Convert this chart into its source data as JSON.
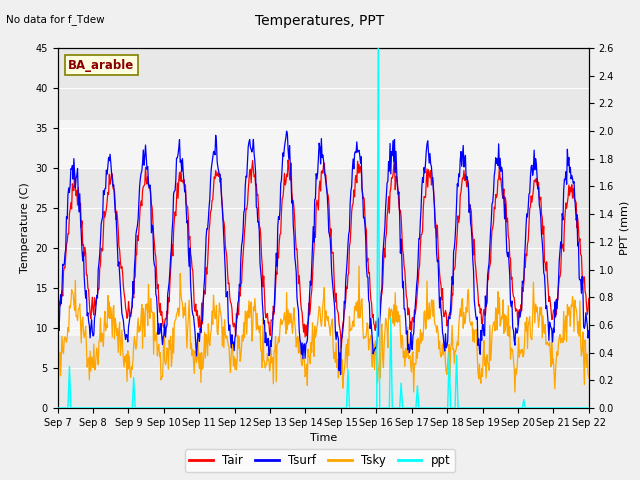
{
  "title": "Temperatures, PPT",
  "subtitle": "No data for f_Tdew",
  "xlabel": "Time",
  "ylabel_left": "Temperature (C)",
  "ylabel_right": "PPT (mm)",
  "legend_label": "BA_arable",
  "series_labels": [
    "Tair",
    "Tsurf",
    "Tsky",
    "ppt"
  ],
  "series_colors": [
    "red",
    "blue",
    "orange",
    "cyan"
  ],
  "ylim_left": [
    0,
    45
  ],
  "ylim_right": [
    0.0,
    2.6
  ],
  "xtick_labels": [
    "Sep 7",
    "Sep 8",
    "Sep 9",
    "Sep 10",
    "Sep 11",
    "Sep 12",
    "Sep 13",
    "Sep 14",
    "Sep 15",
    "Sep 16",
    "Sep 17",
    "Sep 18",
    "Sep 19",
    "Sep 20",
    "Sep 21",
    "Sep 22"
  ],
  "band_edges": [
    0,
    9,
    15,
    30,
    36,
    45
  ],
  "band_colors": [
    "#e8e8e8",
    "#f5f5f5",
    "#e8e8e8",
    "#f5f5f5",
    "#e8e8e8"
  ],
  "fig_facecolor": "#f0f0f0",
  "title_fontsize": 10,
  "label_fontsize": 8,
  "tick_fontsize": 7
}
